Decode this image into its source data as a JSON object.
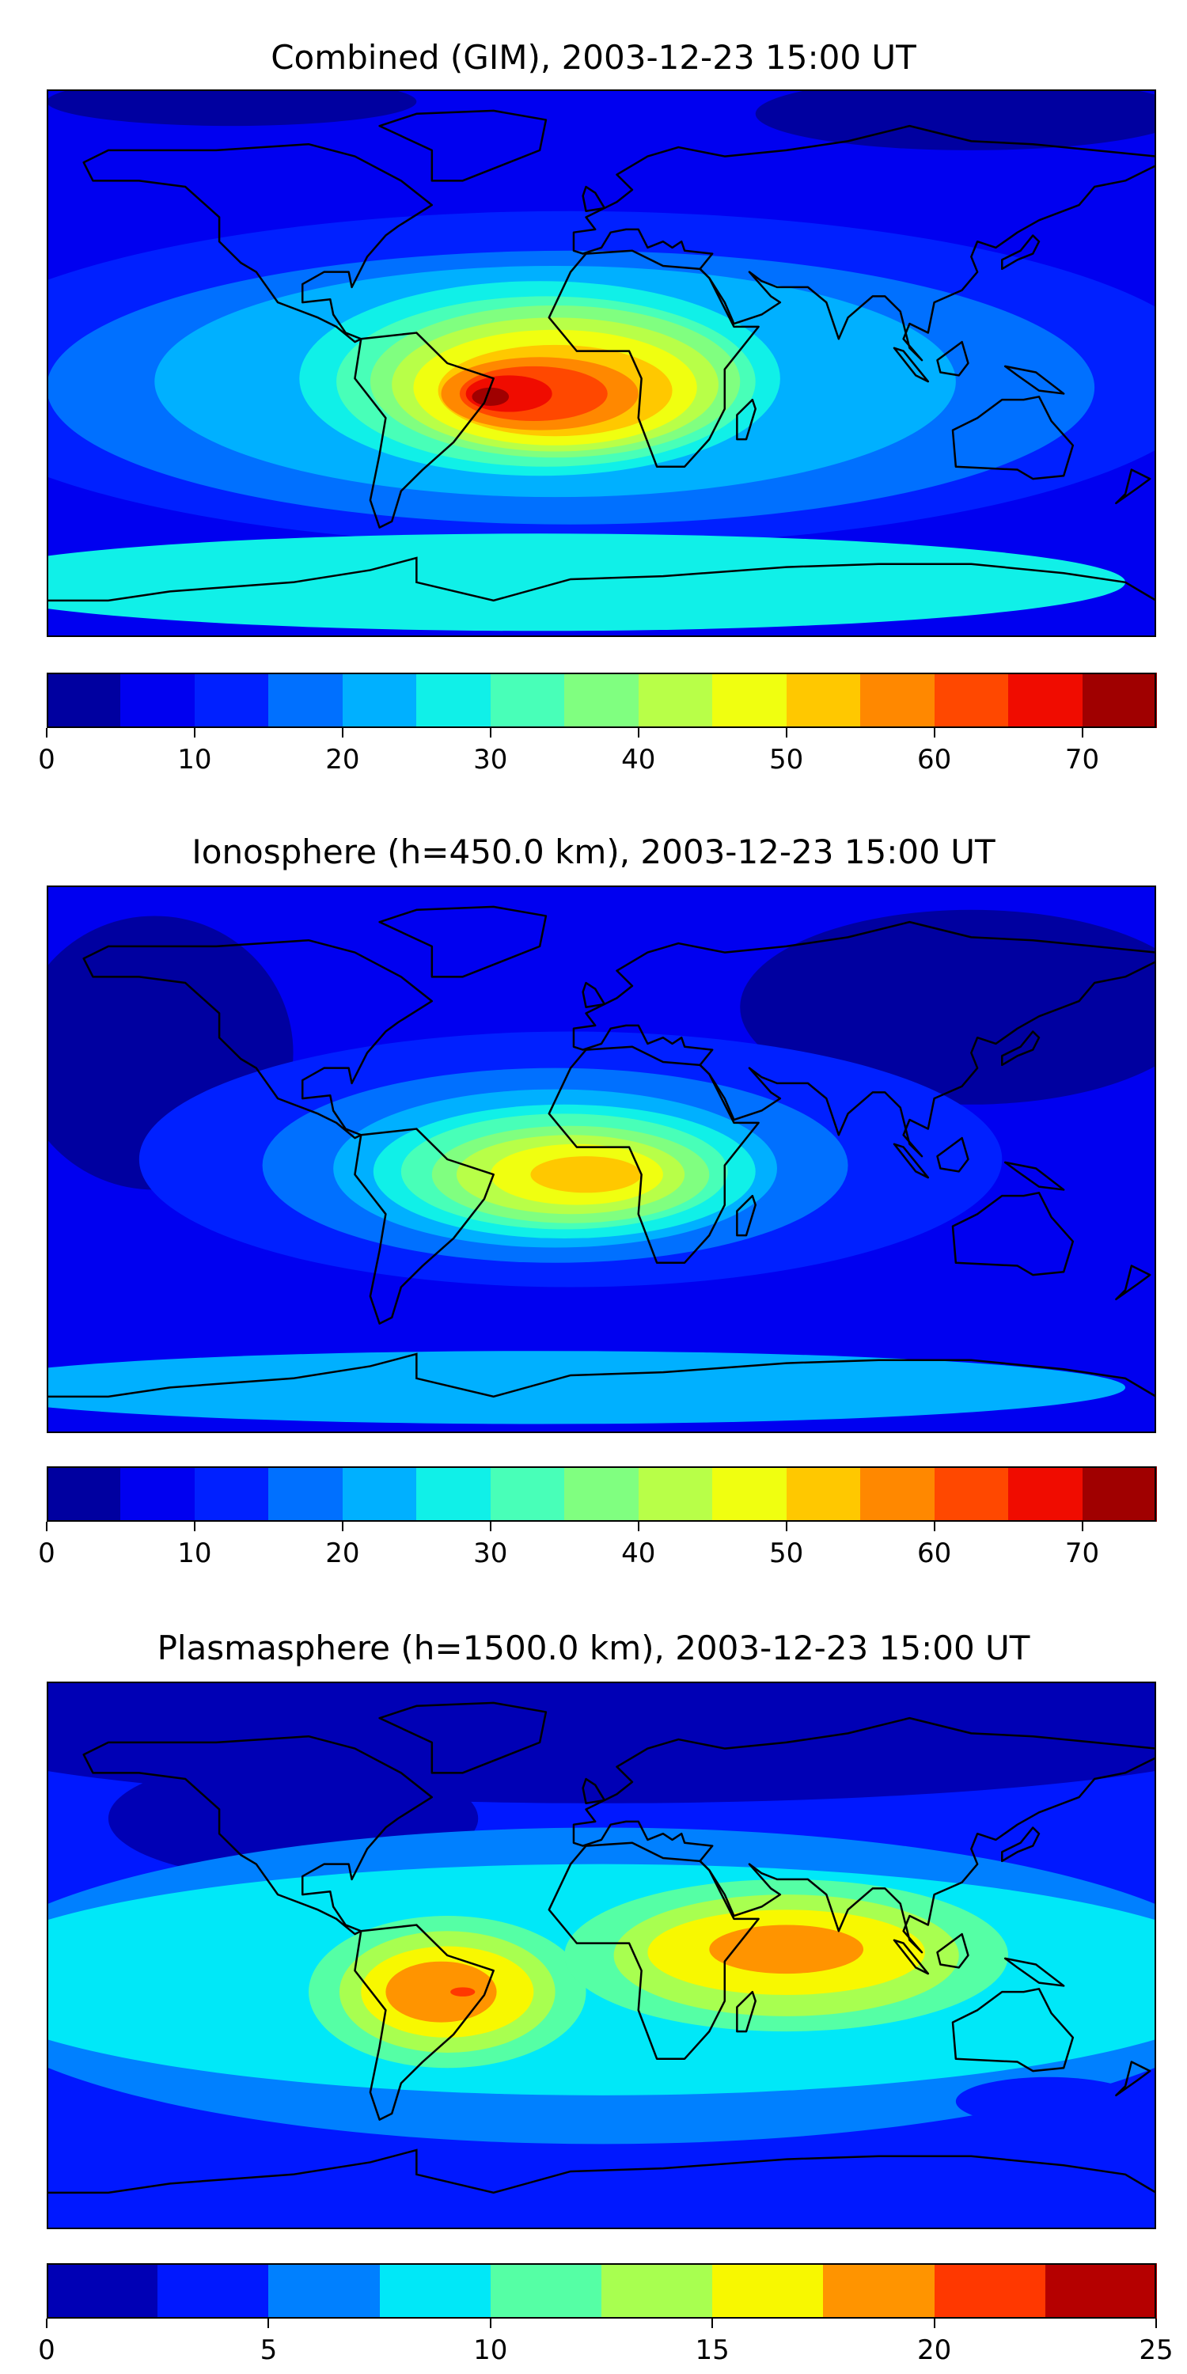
{
  "chart_data": [
    {
      "type": "heatmap",
      "title": "Combined (GIM), 2003-12-23 15:00 UT",
      "lon_range": [
        -180,
        180
      ],
      "lat_range": [
        -90,
        90
      ],
      "colorbar": {
        "levels": [
          0,
          5,
          10,
          15,
          20,
          25,
          30,
          35,
          40,
          45,
          50,
          55,
          60,
          65,
          70,
          75
        ],
        "ticks": [
          "0",
          "10",
          "20",
          "30",
          "40",
          "50",
          "60",
          "70"
        ],
        "tick_values": [
          0,
          10,
          20,
          30,
          40,
          50,
          60,
          70
        ],
        "colors": [
          "#0000a0",
          "#0000f0",
          "#0020ff",
          "#0070ff",
          "#00b0ff",
          "#10f0e8",
          "#48ffb8",
          "#80ff80",
          "#b8ff48",
          "#f0ff10",
          "#ffc800",
          "#ff8800",
          "#ff4800",
          "#f00c00",
          "#a00000"
        ]
      },
      "background_level": 1,
      "field_blobs": [
        [
          120,
          82,
          70,
          12,
          0
        ],
        [
          -120,
          86,
          60,
          8,
          0
        ],
        [
          -10,
          -5,
          210,
          55,
          2
        ],
        [
          -10,
          -8,
          170,
          45,
          3
        ],
        [
          -15,
          -6,
          130,
          38,
          4
        ],
        [
          -20,
          -72,
          190,
          16,
          5
        ],
        [
          -20,
          -5,
          78,
          32,
          5
        ],
        [
          -18,
          -6,
          68,
          28,
          6
        ],
        [
          -15,
          -6,
          60,
          25,
          7
        ],
        [
          -15,
          -7,
          53,
          22,
          8
        ],
        [
          -15,
          -8,
          46,
          19,
          9
        ],
        [
          -15,
          -9,
          38,
          15,
          10
        ],
        [
          -20,
          -10,
          32,
          12,
          11
        ],
        [
          -22,
          -10,
          24,
          9,
          12
        ],
        [
          -30,
          -10,
          14,
          6,
          13
        ],
        [
          -36,
          -11,
          6,
          3,
          14
        ]
      ]
    },
    {
      "type": "heatmap",
      "title": "Ionosphere  (h=450.0 km), 2003-12-23 15:00 UT",
      "lon_range": [
        -180,
        180
      ],
      "lat_range": [
        -90,
        90
      ],
      "colorbar": {
        "levels": [
          0,
          5,
          10,
          15,
          20,
          25,
          30,
          35,
          40,
          45,
          50,
          55,
          60,
          65,
          70,
          75
        ],
        "ticks": [
          "0",
          "10",
          "20",
          "30",
          "40",
          "50",
          "60",
          "70"
        ],
        "tick_values": [
          0,
          10,
          20,
          30,
          40,
          50,
          60,
          70
        ],
        "colors": [
          "#0000a0",
          "#0000f0",
          "#0020ff",
          "#0070ff",
          "#00b0ff",
          "#10f0e8",
          "#48ffb8",
          "#80ff80",
          "#b8ff48",
          "#f0ff10",
          "#ffc800",
          "#ff8800",
          "#ff4800",
          "#f00c00",
          "#a00000"
        ]
      },
      "background_level": 1,
      "field_blobs": [
        [
          120,
          50,
          75,
          32,
          0
        ],
        [
          -145,
          35,
          45,
          45,
          0
        ],
        [
          -10,
          0,
          140,
          42,
          2
        ],
        [
          -15,
          -2,
          95,
          32,
          3
        ],
        [
          -20,
          -75,
          190,
          12,
          4
        ],
        [
          -15,
          -3,
          72,
          26,
          4
        ],
        [
          -12,
          -4,
          62,
          22,
          5
        ],
        [
          -12,
          -4,
          53,
          19,
          6
        ],
        [
          -10,
          -5,
          45,
          16,
          7
        ],
        [
          -10,
          -5,
          37,
          13,
          8
        ],
        [
          -8,
          -5,
          28,
          10,
          9
        ],
        [
          -5,
          -5,
          18,
          6,
          10
        ]
      ]
    },
    {
      "type": "heatmap",
      "title": "Plasmasphere (h=1500.0 km), 2003-12-23 15:00 UT",
      "lon_range": [
        -180,
        180
      ],
      "lat_range": [
        -90,
        90
      ],
      "colorbar": {
        "levels": [
          0,
          2.5,
          5,
          7.5,
          10,
          12.5,
          15,
          17.5,
          20,
          22.5,
          25
        ],
        "ticks": [
          "0",
          "5",
          "10",
          "15",
          "20",
          "25"
        ],
        "tick_values": [
          0,
          5,
          10,
          15,
          20,
          25
        ],
        "colors": [
          "#0000b5",
          "#0018ff",
          "#0080ff",
          "#00e8f8",
          "#55ffa5",
          "#a8ff50",
          "#f8f800",
          "#ff9400",
          "#ff3800",
          "#b50000"
        ]
      },
      "background_level": 1,
      "field_blobs": [
        [
          0,
          75,
          220,
          25,
          0
        ],
        [
          -100,
          45,
          60,
          20,
          0
        ],
        [
          0,
          -10,
          210,
          52,
          2
        ],
        [
          0,
          -8,
          210,
          38,
          3
        ],
        [
          145,
          -48,
          30,
          8,
          1
        ],
        [
          -50,
          -12,
          45,
          25,
          4
        ],
        [
          60,
          0,
          72,
          25,
          4
        ],
        [
          -50,
          -12,
          35,
          20,
          5
        ],
        [
          60,
          0,
          56,
          20,
          5
        ],
        [
          -50,
          -12,
          28,
          15,
          6
        ],
        [
          60,
          1,
          45,
          14,
          6
        ],
        [
          -52,
          -12,
          18,
          10,
          7
        ],
        [
          60,
          2,
          25,
          8,
          7
        ],
        [
          -45,
          -12,
          4,
          1.5,
          8
        ]
      ]
    }
  ]
}
